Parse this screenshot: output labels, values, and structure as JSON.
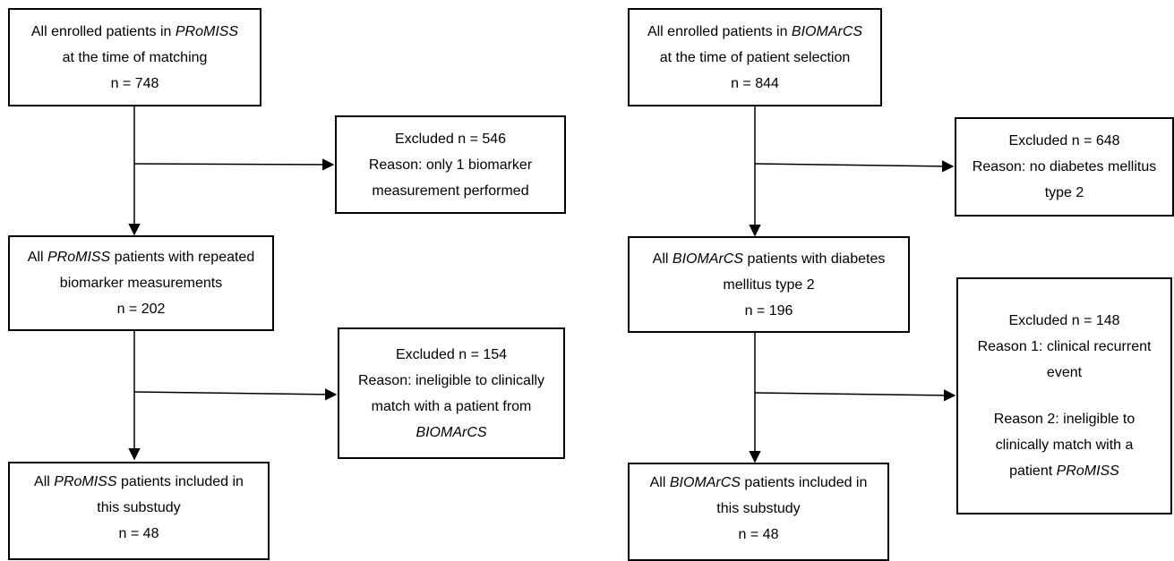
{
  "left": {
    "box1": {
      "line1_pre": "All enrolled patients in ",
      "line1_em": "PRoMISS",
      "line2": "at the time of matching",
      "line3": "n = 748"
    },
    "excl1": {
      "line1": "Excluded n = 546",
      "line2": "Reason: only 1 biomarker",
      "line3": "measurement performed"
    },
    "box2": {
      "line1_pre": "All ",
      "line1_em": "PRoMISS",
      "line1_post": " patients with repeated",
      "line2": "biomarker measurements",
      "line3": "n = 202"
    },
    "excl2": {
      "line1": "Excluded n = 154",
      "line2": "Reason: ineligible to clinically",
      "line3": "match with a patient from",
      "line4_em": "BIOMArCS"
    },
    "box3": {
      "line1_pre": "All ",
      "line1_em": "PRoMISS",
      "line1_post": " patients included in",
      "line2": "this substudy",
      "line3": "n = 48"
    }
  },
  "right": {
    "box1": {
      "line1_pre": "All enrolled patients in ",
      "line1_em": "BIOMArCS",
      "line2": "at the time of patient selection",
      "line3": "n = 844"
    },
    "excl1": {
      "line1": "Excluded n = 648",
      "line2": "Reason: no diabetes mellitus",
      "line3": "type 2"
    },
    "box2": {
      "line1_pre": "All ",
      "line1_em": "BIOMArCS",
      "line1_post": " patients with diabetes",
      "line2": "mellitus type 2",
      "line3": "n = 196"
    },
    "excl2": {
      "line1": "Excluded n = 148",
      "line2": "Reason 1: clinical recurrent",
      "line3": "event",
      "line4": "Reason 2: ineligible to",
      "line5": "clinically match with a",
      "line6_pre": "patient ",
      "line6_em": "PRoMISS"
    },
    "box3": {
      "line1_pre": "All ",
      "line1_em": "BIOMArCS",
      "line1_post": " patients included in",
      "line2": "this substudy",
      "line3": "n = 48"
    }
  }
}
